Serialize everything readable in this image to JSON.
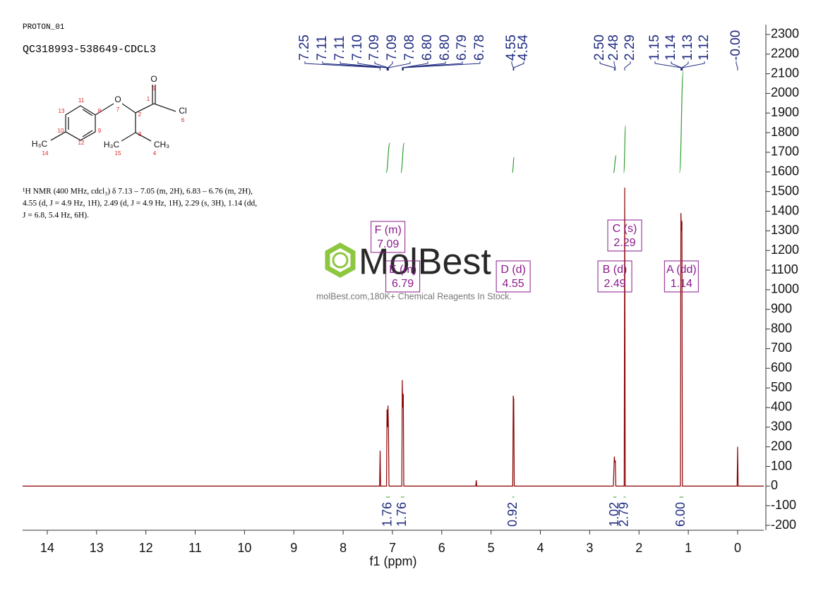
{
  "header": {
    "experiment": "PROTON_01",
    "sample": "QC318993-538649-CDCL3"
  },
  "structure": {
    "atoms": [
      "O",
      "5",
      "1",
      "Cl",
      "6",
      "O",
      "7",
      "2",
      "3",
      "8",
      "9",
      "10",
      "11",
      "12",
      "13",
      "H₃C",
      "14",
      "H₃C",
      "15",
      "CH₃",
      "4"
    ]
  },
  "description": [
    "¹H NMR (400 MHz, cdcl₃) δ 7.13 – 7.05 (m, 2H), 6.83 – 6.76 (m, 2H),",
    "4.55 (d, J = 4.9 Hz, 1H), 2.49 (d, J = 4.9 Hz, 1H), 2.29 (s, 3H), 1.14 (dd,",
    "J = 6.8, 5.4 Hz, 6H)."
  ],
  "watermark": {
    "brand": "MolBest",
    "tagline": "molBest.com,180K+ Chemical Reagents In Stock."
  },
  "chart_data": {
    "type": "line",
    "x_label": "f1 (ppm)",
    "color": "#8b0000",
    "x": [
      14.5,
      7.26,
      7.25,
      7.24,
      7.12,
      7.11,
      7.1,
      7.09,
      7.08,
      7.07,
      6.81,
      6.8,
      6.79,
      6.78,
      6.77,
      5.31,
      5.3,
      5.29,
      4.56,
      4.55,
      4.54,
      4.53,
      2.52,
      2.5,
      2.49,
      2.48,
      2.47,
      2.3,
      2.29,
      2.28,
      1.16,
      1.15,
      1.14,
      1.13,
      1.12,
      0.01,
      0,
      -0.01,
      -0.53
    ],
    "values": [
      0,
      0,
      180,
      0,
      0,
      390,
      300,
      410,
      280,
      0,
      0,
      540,
      400,
      470,
      0,
      0,
      30,
      0,
      0,
      460,
      440,
      0,
      0,
      150,
      120,
      130,
      0,
      0,
      1520,
      0,
      0,
      1390,
      1300,
      1350,
      0,
      0,
      200,
      0,
      0
    ],
    "xlim": [
      14.5,
      -0.53
    ],
    "ylim": [
      -225,
      2350
    ],
    "xticks": [
      14,
      13,
      12,
      11,
      10,
      9,
      8,
      7,
      6,
      5,
      4,
      3,
      2,
      1,
      0
    ],
    "yticks": [
      -200,
      -100,
      0,
      100,
      200,
      300,
      400,
      500,
      600,
      700,
      800,
      900,
      1000,
      1100,
      1200,
      1300,
      1400,
      1500,
      1600,
      1700,
      1800,
      1900,
      2000,
      2100,
      2200,
      2300
    ],
    "peak_color": "#1f2a80",
    "peak_labels": [
      {
        "value": 7.25,
        "label": "7.25"
      },
      {
        "value": 7.11,
        "label": "7.11"
      },
      {
        "value": 7.11,
        "label": "7.11"
      },
      {
        "value": 7.1,
        "label": "7.10"
      },
      {
        "value": 7.09,
        "label": "7.09"
      },
      {
        "value": 7.09,
        "label": "7.09"
      },
      {
        "value": 7.08,
        "label": "7.08"
      },
      {
        "value": 6.8,
        "label": "6.80"
      },
      {
        "value": 6.8,
        "label": "6.80"
      },
      {
        "value": 6.79,
        "label": "6.79"
      },
      {
        "value": 6.78,
        "label": "6.78"
      },
      {
        "value": 4.55,
        "label": "4.55"
      },
      {
        "value": 4.54,
        "label": "4.54"
      },
      {
        "value": 2.5,
        "label": "2.50"
      },
      {
        "value": 2.48,
        "label": "2.48"
      },
      {
        "value": 2.29,
        "label": "2.29"
      },
      {
        "value": 1.15,
        "label": "1.15"
      },
      {
        "value": 1.14,
        "label": "1.14"
      },
      {
        "value": 1.13,
        "label": "1.13"
      },
      {
        "value": 1.12,
        "label": "1.12"
      },
      {
        "value": 0,
        "label": "-0.00"
      }
    ],
    "integral_color": "#2e9e2e",
    "integrals": {
      "from": [
        7.13,
        6.83,
        4.57,
        2.52,
        2.31,
        1.18
      ],
      "to": [
        7.05,
        6.76,
        4.53,
        2.46,
        2.27,
        1.1
      ],
      "values": [
        1.76,
        1.76,
        0.92,
        1.02,
        2.79,
        6
      ],
      "value_labels": [
        "1.76",
        "1.76",
        "0.92",
        "1.02",
        "2.79",
        "6.00"
      ]
    },
    "multiplet_color": "#8b1a8b",
    "multiplets": [
      {
        "label": "F (m)",
        "shift": 7.09
      },
      {
        "label": "E (m)",
        "shift": 6.79
      },
      {
        "label": "D (d)",
        "shift": 4.55
      },
      {
        "label": "C (s)",
        "shift": 2.29
      },
      {
        "label": "B (d)",
        "shift": 2.49
      },
      {
        "label": "A (dd)",
        "shift": 1.14
      }
    ]
  }
}
